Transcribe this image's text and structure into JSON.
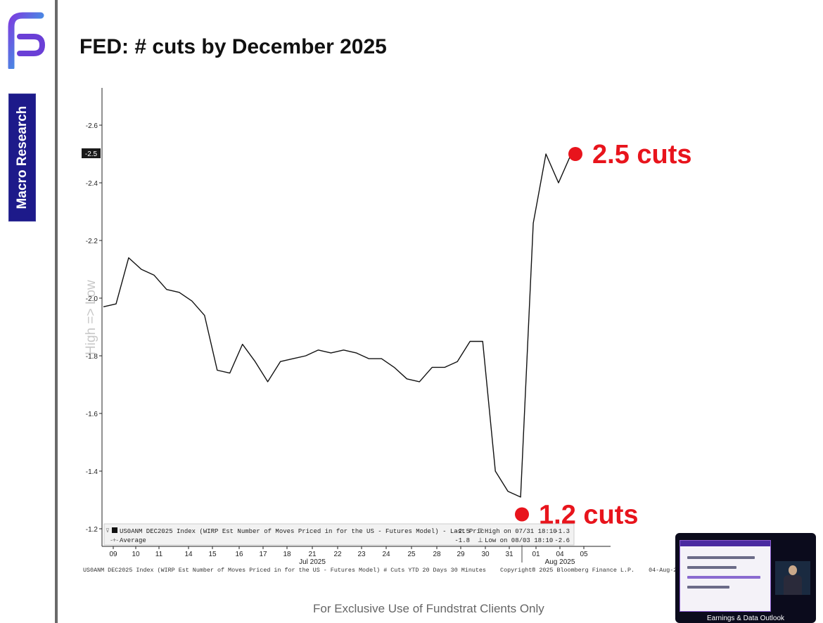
{
  "slide": {
    "title": "FED: # cuts by December 2025",
    "section": "Macro Research",
    "footer": "For Exclusive Use of Fundstrat Clients Only",
    "accent_color": "#1d1a8a",
    "logo_icon": "fundstrat-logo-icon"
  },
  "chart_data": {
    "type": "line",
    "title": "",
    "xlabel": "",
    "ylabel": "",
    "watermark": "High => Low",
    "y_axis_reversed": true,
    "ylim": [
      -1.2,
      -2.6
    ],
    "yticks": [
      "-2.6",
      "-2.4",
      "-2.2",
      "-2.0",
      "-1.8",
      "-1.6",
      "-1.4",
      "-1.2"
    ],
    "last_value_tag": "-2.5",
    "x_ticks": [
      "09",
      "10",
      "11",
      "14",
      "15",
      "16",
      "17",
      "18",
      "21",
      "22",
      "23",
      "24",
      "25",
      "28",
      "29",
      "30",
      "31",
      "01",
      "04",
      "05"
    ],
    "x_month_labels": [
      "Jul 2025",
      "Aug 2025"
    ],
    "series": [
      {
        "name": "US0ANM DEC2025 Index (WIRP Est Number of Moves Priced in for the US - Futures Model) - Last Price",
        "x": [
          "Jul-09",
          "Jul-09b",
          "Jul-10",
          "Jul-10b",
          "Jul-11",
          "Jul-11b",
          "Jul-14",
          "Jul-14b",
          "Jul-15",
          "Jul-15b",
          "Jul-16",
          "Jul-16b",
          "Jul-17",
          "Jul-17b",
          "Jul-18",
          "Jul-18b",
          "Jul-21",
          "Jul-21b",
          "Jul-22",
          "Jul-22b",
          "Jul-23",
          "Jul-23b",
          "Jul-24",
          "Jul-24b",
          "Jul-25",
          "Jul-25b",
          "Jul-28",
          "Jul-28b",
          "Jul-29",
          "Jul-29b",
          "Jul-30",
          "Jul-30b",
          "Jul-31",
          "Jul-31b",
          "Aug-01",
          "Aug-01b",
          "Aug-04",
          "Aug-04b"
        ],
        "values": [
          -1.97,
          -1.98,
          -2.14,
          -2.1,
          -2.08,
          -2.03,
          -2.02,
          -1.99,
          -1.94,
          -1.75,
          -1.74,
          -1.84,
          -1.78,
          -1.71,
          -1.78,
          -1.79,
          -1.8,
          -1.82,
          -1.81,
          -1.82,
          -1.81,
          -1.79,
          -1.79,
          -1.76,
          -1.72,
          -1.71,
          -1.76,
          -1.76,
          -1.78,
          -1.85,
          -1.85,
          -1.4,
          -1.33,
          -1.31,
          -2.26,
          -2.5,
          -2.4,
          -2.5
        ]
      }
    ],
    "stats": {
      "last_price": "-2.5",
      "average": "-1.8",
      "high": "High on 07/31 18:10",
      "high_value": "-1.3",
      "low": "Low on 08/03 18:10",
      "low_value": "-2.6"
    },
    "legend_series_label": "US0ANM DEC2025 Index (WIRP Est Number of Moves Priced in for the US - Futures Model) - Last Pric",
    "legend_average_label": "Average",
    "source_line": "US0ANM DEC2025 Index (WIRP Est Number of Moves Priced in for the US - Futures Model) # Cuts YTD 20 Days 30 Minutes    Copyright® 2025 Bloomberg Finance L.P.    04-Aug-2025 17:57:31",
    "annotations": [
      {
        "text": "2.5 cuts",
        "x": "Aug-04b",
        "y": -2.5,
        "color": "#e8141c"
      },
      {
        "text": "1.2 cuts",
        "x": "Jul-31b",
        "y": -1.25,
        "color": "#e8141c"
      }
    ]
  },
  "thumbnail": {
    "caption": "Earnings & Data Outlook"
  }
}
